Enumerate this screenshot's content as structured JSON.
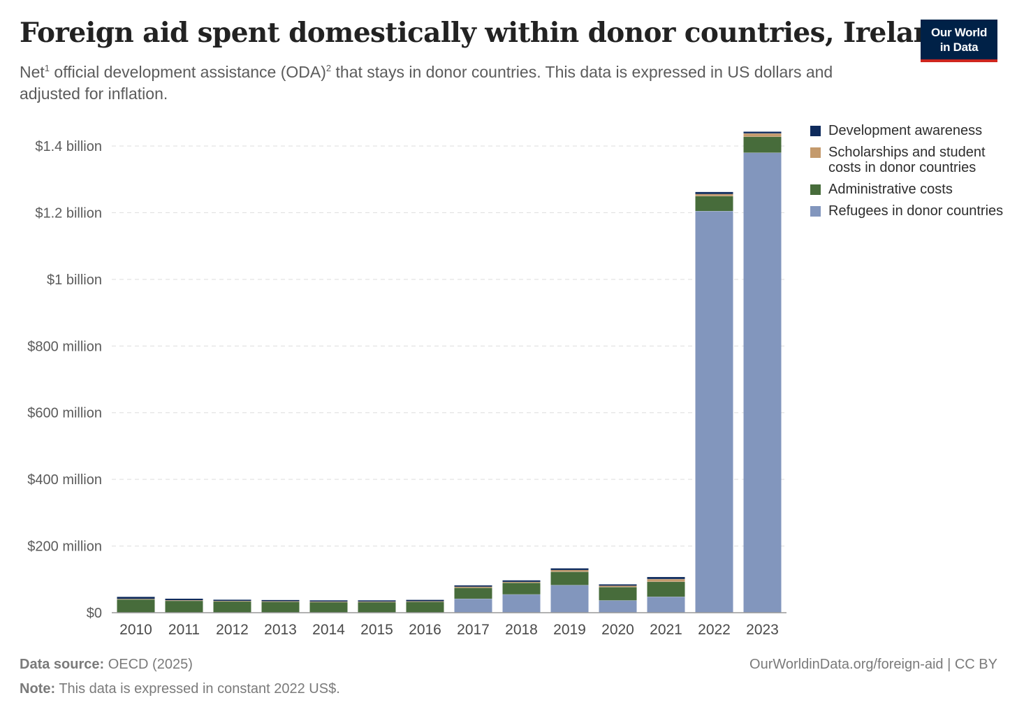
{
  "header": {
    "title": "Foreign aid spent domestically within donor countries, Ireland",
    "subtitle_a": "Net",
    "subtitle_sup1": "1",
    "subtitle_b": " official development assistance (ODA)",
    "subtitle_sup2": "2",
    "subtitle_c": " that stays in donor countries. This data is expressed in US dollars and adjusted for inflation."
  },
  "logo": {
    "line1": "Our World",
    "line2": "in Data"
  },
  "footer": {
    "source_label": "Data source:",
    "source_value": "OECD (2025)",
    "note_label": "Note:",
    "note_value": "This data is expressed in constant 2022 US$.",
    "url": "OurWorldinData.org/foreign-aid | CC BY"
  },
  "colors": {
    "development_awareness": "#0e2b5c",
    "scholarships": "#c49a6c",
    "administrative": "#476c3b",
    "refugees": "#8296bd",
    "grid": "#dddddd",
    "axis": "#999999"
  },
  "chart_data": {
    "type": "bar",
    "stacked": true,
    "title": "Foreign aid spent domestically within donor countries, Ireland",
    "xlabel": "",
    "ylabel": "",
    "ylim": [
      0,
      1450000000
    ],
    "yticks": [
      0,
      200000000,
      400000000,
      600000000,
      800000000,
      1000000000,
      1200000000,
      1400000000
    ],
    "ytick_labels": [
      "$0",
      "$200 million",
      "$400 million",
      "$600 million",
      "$800 million",
      "$1 billion",
      "$1.2 billion",
      "$1.4 billion"
    ],
    "grid": true,
    "legend_position": "right",
    "categories": [
      "2010",
      "2011",
      "2012",
      "2013",
      "2014",
      "2015",
      "2016",
      "2017",
      "2018",
      "2019",
      "2020",
      "2021",
      "2022",
      "2023"
    ],
    "series": [
      {
        "name": "Refugees in donor countries",
        "color_key": "refugees",
        "values": [
          0,
          0,
          0,
          0,
          0,
          0,
          0,
          42000000,
          55000000,
          83000000,
          37000000,
          48000000,
          1205000000,
          1380000000
        ]
      },
      {
        "name": "Administrative costs",
        "color_key": "administrative",
        "values": [
          40000000,
          36000000,
          34000000,
          33000000,
          32000000,
          32000000,
          33000000,
          33000000,
          35000000,
          40000000,
          40000000,
          45000000,
          45000000,
          48000000
        ]
      },
      {
        "name": "Scholarships and student costs in donor countries",
        "color_key": "scholarships",
        "values": [
          1500000,
          1500000,
          1500000,
          1500000,
          1500000,
          1500000,
          1500000,
          3000000,
          2500000,
          5000000,
          4000000,
          8000000,
          6000000,
          10000000
        ]
      },
      {
        "name": "Development awareness",
        "color_key": "development_awareness",
        "values": [
          6500000,
          4500000,
          3500000,
          3500000,
          3500000,
          3500000,
          4000000,
          4000000,
          4500000,
          5000000,
          4000000,
          6000000,
          6000000,
          5000000
        ]
      }
    ],
    "legend": [
      {
        "name": "Development awareness",
        "color_key": "development_awareness"
      },
      {
        "name": "Scholarships and student costs in donor countries",
        "color_key": "scholarships"
      },
      {
        "name": "Administrative costs",
        "color_key": "administrative"
      },
      {
        "name": "Refugees in donor countries",
        "color_key": "refugees"
      }
    ]
  }
}
